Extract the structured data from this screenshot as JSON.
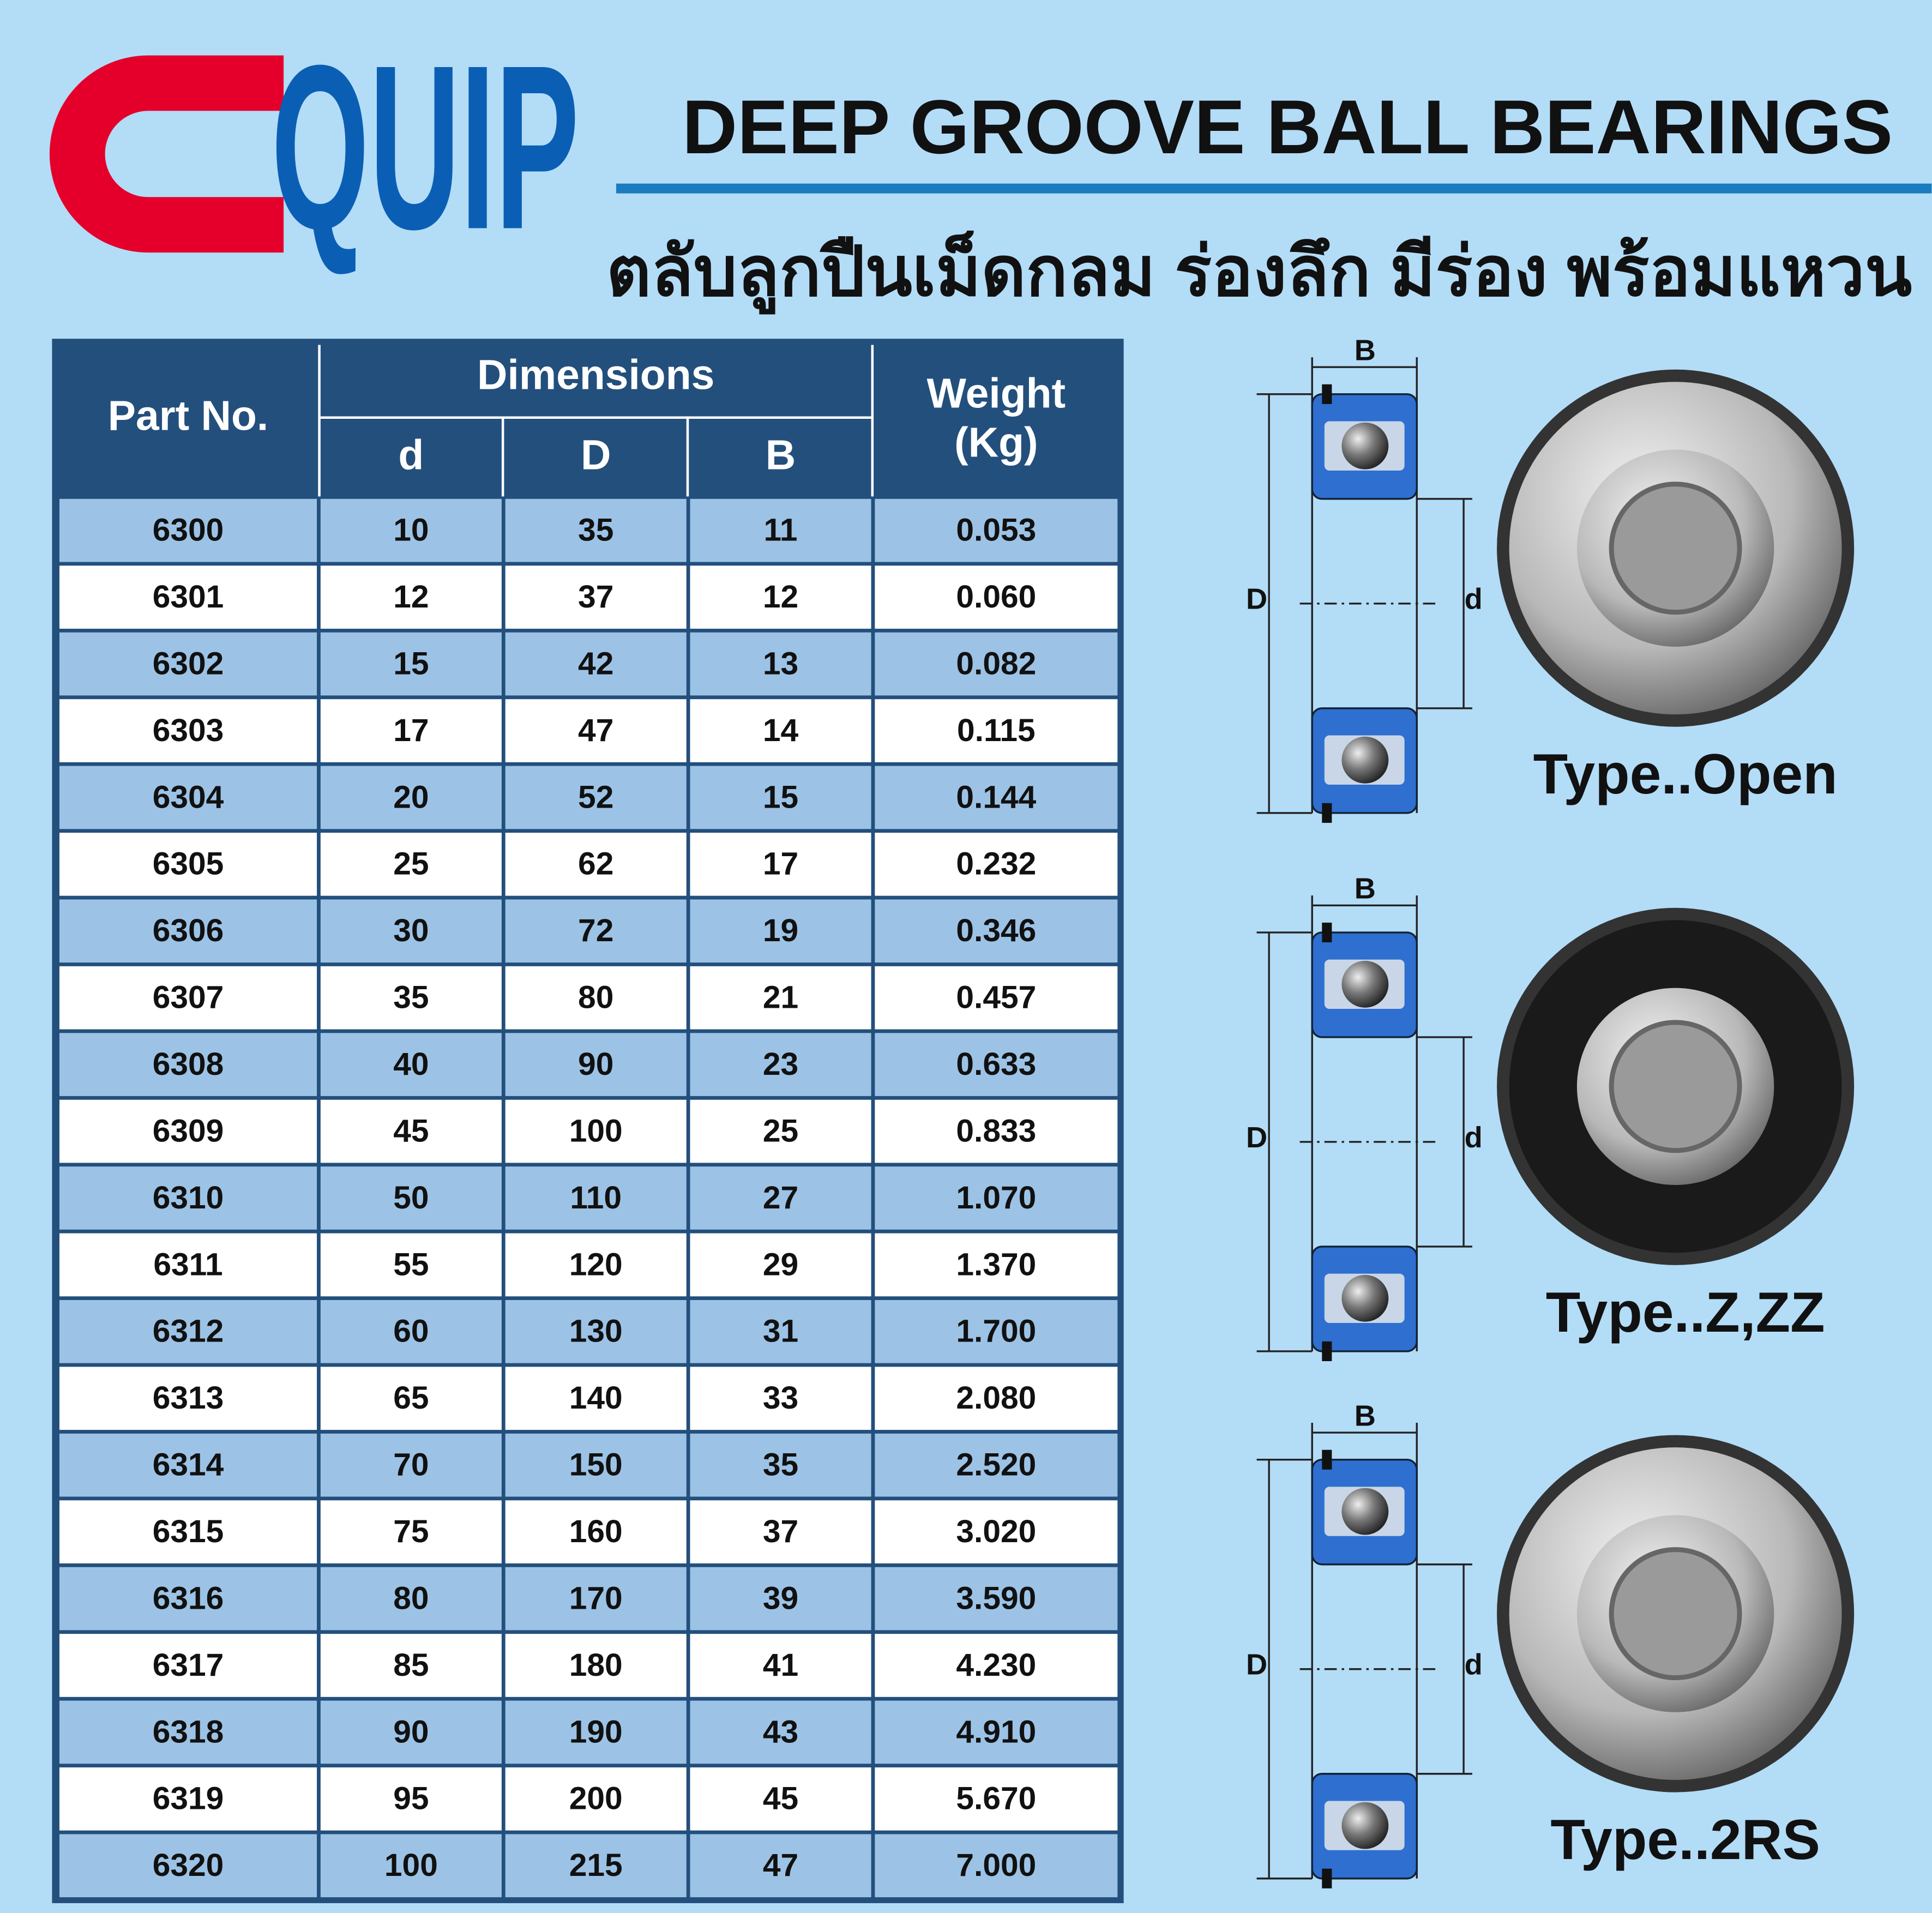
{
  "header": {
    "logo": "QUIP",
    "title": "DEEP GROOVE BALL BEARINGS",
    "subtitle": "ตลับลูกปืนเม็ดกลม ร่องลึก มีร่อง พร้อมแหวน"
  },
  "table": {
    "headers": {
      "part": "Part No.",
      "dimensions": "Dimensions",
      "d": "d",
      "D": "D",
      "B": "B",
      "weight": "Weight\n(Kg)"
    },
    "rows": [
      [
        "6300",
        "10",
        "35",
        "11",
        "0.053"
      ],
      [
        "6301",
        "12",
        "37",
        "12",
        "0.060"
      ],
      [
        "6302",
        "15",
        "42",
        "13",
        "0.082"
      ],
      [
        "6303",
        "17",
        "47",
        "14",
        "0.115"
      ],
      [
        "6304",
        "20",
        "52",
        "15",
        "0.144"
      ],
      [
        "6305",
        "25",
        "62",
        "17",
        "0.232"
      ],
      [
        "6306",
        "30",
        "72",
        "19",
        "0.346"
      ],
      [
        "6307",
        "35",
        "80",
        "21",
        "0.457"
      ],
      [
        "6308",
        "40",
        "90",
        "23",
        "0.633"
      ],
      [
        "6309",
        "45",
        "100",
        "25",
        "0.833"
      ],
      [
        "6310",
        "50",
        "110",
        "27",
        "1.070"
      ],
      [
        "6311",
        "55",
        "120",
        "29",
        "1.370"
      ],
      [
        "6312",
        "60",
        "130",
        "31",
        "1.700"
      ],
      [
        "6313",
        "65",
        "140",
        "33",
        "2.080"
      ],
      [
        "6314",
        "70",
        "150",
        "35",
        "2.520"
      ],
      [
        "6315",
        "75",
        "160",
        "37",
        "3.020"
      ],
      [
        "6316",
        "80",
        "170",
        "39",
        "3.590"
      ],
      [
        "6317",
        "85",
        "180",
        "41",
        "4.230"
      ],
      [
        "6318",
        "90",
        "190",
        "43",
        "4.910"
      ],
      [
        "6319",
        "95",
        "200",
        "45",
        "5.670"
      ],
      [
        "6320",
        "100",
        "215",
        "47",
        "7.000"
      ]
    ]
  },
  "diagrams": [
    {
      "B": "B",
      "D": "D",
      "d": "d",
      "label": "Type..Open"
    },
    {
      "B": "B",
      "D": "D",
      "d": "d",
      "label": "Type..Z,ZZ"
    },
    {
      "B": "B",
      "D": "D",
      "d": "d",
      "label": "Type..2RS"
    }
  ]
}
